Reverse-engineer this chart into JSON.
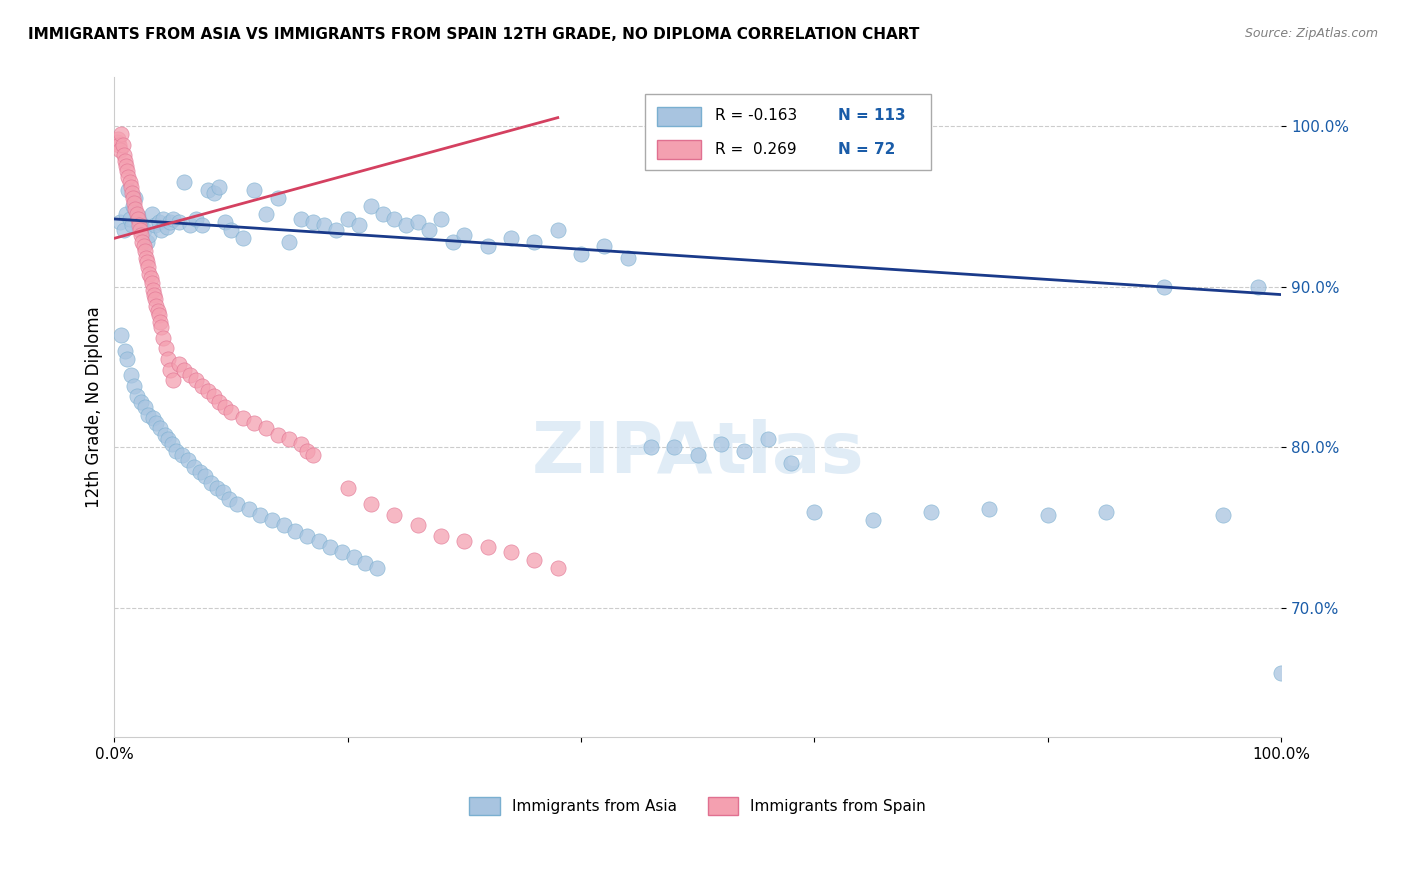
{
  "title": "IMMIGRANTS FROM ASIA VS IMMIGRANTS FROM SPAIN 12TH GRADE, NO DIPLOMA CORRELATION CHART",
  "source": "Source: ZipAtlas.com",
  "ylabel": "12th Grade, No Diploma",
  "ytick_values": [
    1.0,
    0.9,
    0.8,
    0.7
  ],
  "xlim": [
    0.0,
    1.0
  ],
  "ylim": [
    0.62,
    1.03
  ],
  "legend_r_asia": "-0.163",
  "legend_n_asia": "113",
  "legend_r_spain": "0.269",
  "legend_n_spain": "72",
  "color_asia": "#a8c4e0",
  "color_spain": "#f4a0b0",
  "color_asia_line": "#1a3a8a",
  "color_spain_line": "#d44060",
  "asia_scatter_x": [
    0.005,
    0.008,
    0.01,
    0.012,
    0.013,
    0.015,
    0.016,
    0.018,
    0.02,
    0.022,
    0.025,
    0.028,
    0.03,
    0.032,
    0.035,
    0.038,
    0.04,
    0.042,
    0.045,
    0.048,
    0.05,
    0.055,
    0.06,
    0.065,
    0.07,
    0.075,
    0.08,
    0.085,
    0.09,
    0.095,
    0.1,
    0.11,
    0.12,
    0.13,
    0.14,
    0.15,
    0.16,
    0.17,
    0.18,
    0.19,
    0.2,
    0.21,
    0.22,
    0.23,
    0.24,
    0.25,
    0.26,
    0.27,
    0.28,
    0.29,
    0.3,
    0.32,
    0.34,
    0.36,
    0.38,
    0.4,
    0.42,
    0.44,
    0.46,
    0.48,
    0.5,
    0.52,
    0.54,
    0.56,
    0.58,
    0.6,
    0.65,
    0.7,
    0.75,
    0.8,
    0.85,
    0.9,
    0.95,
    0.98,
    1.0,
    0.006,
    0.009,
    0.011,
    0.014,
    0.017,
    0.019,
    0.023,
    0.026,
    0.029,
    0.033,
    0.036,
    0.039,
    0.043,
    0.046,
    0.049,
    0.053,
    0.058,
    0.063,
    0.068,
    0.073,
    0.078,
    0.083,
    0.088,
    0.093,
    0.098,
    0.105,
    0.115,
    0.125,
    0.135,
    0.145,
    0.155,
    0.165,
    0.175,
    0.185,
    0.195,
    0.205,
    0.215,
    0.225
  ],
  "asia_scatter_y": [
    0.94,
    0.935,
    0.945,
    0.96,
    0.942,
    0.938,
    0.95,
    0.955,
    0.944,
    0.94,
    0.935,
    0.928,
    0.932,
    0.945,
    0.938,
    0.94,
    0.935,
    0.942,
    0.937,
    0.94,
    0.942,
    0.94,
    0.965,
    0.938,
    0.942,
    0.938,
    0.96,
    0.958,
    0.962,
    0.94,
    0.935,
    0.93,
    0.96,
    0.945,
    0.955,
    0.928,
    0.942,
    0.94,
    0.938,
    0.935,
    0.942,
    0.938,
    0.95,
    0.945,
    0.942,
    0.938,
    0.94,
    0.935,
    0.942,
    0.928,
    0.932,
    0.925,
    0.93,
    0.928,
    0.935,
    0.92,
    0.925,
    0.918,
    0.8,
    0.8,
    0.795,
    0.802,
    0.798,
    0.805,
    0.79,
    0.76,
    0.755,
    0.76,
    0.762,
    0.758,
    0.76,
    0.9,
    0.758,
    0.9,
    0.66,
    0.87,
    0.86,
    0.855,
    0.845,
    0.838,
    0.832,
    0.828,
    0.825,
    0.82,
    0.818,
    0.815,
    0.812,
    0.808,
    0.805,
    0.802,
    0.798,
    0.795,
    0.792,
    0.788,
    0.785,
    0.782,
    0.778,
    0.775,
    0.772,
    0.768,
    0.765,
    0.762,
    0.758,
    0.755,
    0.752,
    0.748,
    0.745,
    0.742,
    0.738,
    0.735,
    0.732,
    0.728,
    0.725
  ],
  "spain_scatter_x": [
    0.002,
    0.003,
    0.004,
    0.005,
    0.006,
    0.007,
    0.008,
    0.009,
    0.01,
    0.011,
    0.012,
    0.013,
    0.014,
    0.015,
    0.016,
    0.017,
    0.018,
    0.019,
    0.02,
    0.021,
    0.022,
    0.023,
    0.024,
    0.025,
    0.026,
    0.027,
    0.028,
    0.029,
    0.03,
    0.031,
    0.032,
    0.033,
    0.034,
    0.035,
    0.036,
    0.037,
    0.038,
    0.039,
    0.04,
    0.042,
    0.044,
    0.046,
    0.048,
    0.05,
    0.055,
    0.06,
    0.065,
    0.07,
    0.075,
    0.08,
    0.085,
    0.09,
    0.095,
    0.1,
    0.11,
    0.12,
    0.13,
    0.14,
    0.15,
    0.16,
    0.165,
    0.17,
    0.2,
    0.22,
    0.24,
    0.26,
    0.28,
    0.3,
    0.32,
    0.34,
    0.36,
    0.38
  ],
  "spain_scatter_y": [
    0.99,
    0.992,
    0.988,
    0.985,
    0.995,
    0.988,
    0.982,
    0.978,
    0.975,
    0.972,
    0.968,
    0.965,
    0.962,
    0.958,
    0.955,
    0.952,
    0.948,
    0.945,
    0.942,
    0.938,
    0.935,
    0.932,
    0.928,
    0.925,
    0.922,
    0.918,
    0.915,
    0.912,
    0.908,
    0.905,
    0.902,
    0.898,
    0.895,
    0.892,
    0.888,
    0.885,
    0.882,
    0.878,
    0.875,
    0.868,
    0.862,
    0.855,
    0.848,
    0.842,
    0.852,
    0.848,
    0.845,
    0.842,
    0.838,
    0.835,
    0.832,
    0.828,
    0.825,
    0.822,
    0.818,
    0.815,
    0.812,
    0.808,
    0.805,
    0.802,
    0.798,
    0.795,
    0.775,
    0.765,
    0.758,
    0.752,
    0.745,
    0.742,
    0.738,
    0.735,
    0.73,
    0.725
  ],
  "asia_trendline_x": [
    0.0,
    1.0
  ],
  "asia_trendline_y": [
    0.942,
    0.895
  ],
  "spain_trendline_x": [
    0.0,
    0.38
  ],
  "spain_trendline_y": [
    0.93,
    1.005
  ]
}
